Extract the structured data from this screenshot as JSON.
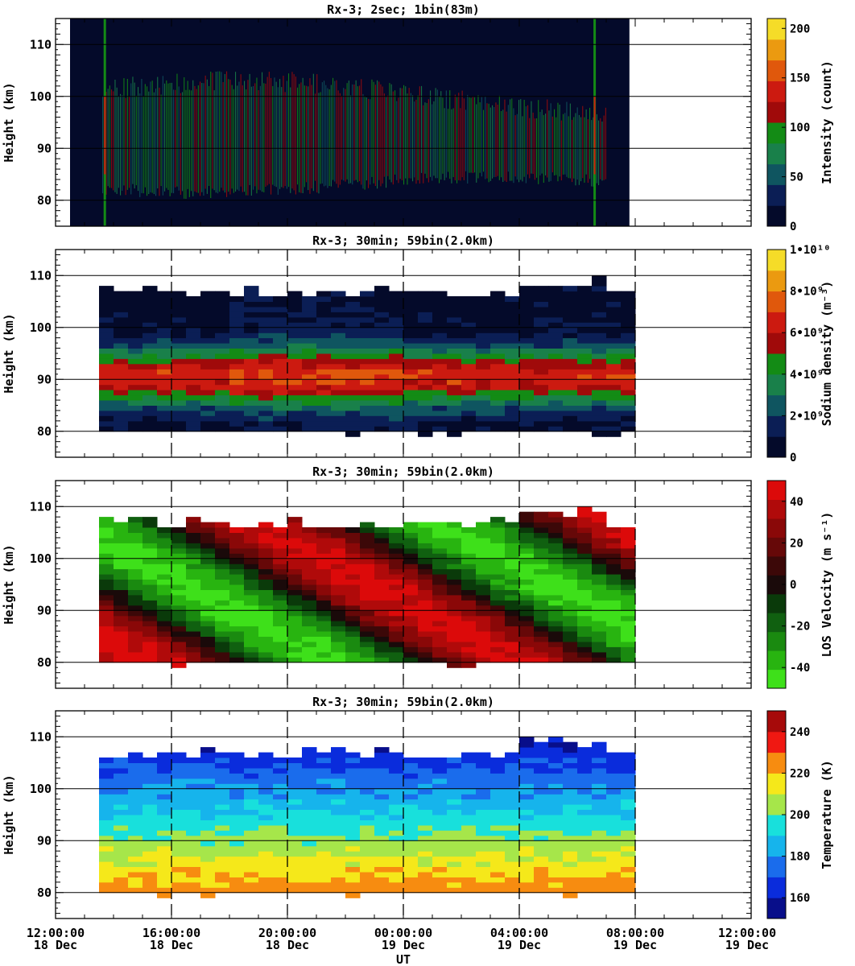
{
  "figure": {
    "xlabel": "UT",
    "x_ticks": [
      {
        "time": "12:00:00",
        "date": "18 Dec"
      },
      {
        "time": "16:00:00",
        "date": "18 Dec"
      },
      {
        "time": "20:00:00",
        "date": "18 Dec"
      },
      {
        "time": "00:00:00",
        "date": "19 Dec"
      },
      {
        "time": "04:00:00",
        "date": "19 Dec"
      },
      {
        "time": "08:00:00",
        "date": "19 Dec"
      },
      {
        "time": "12:00:00",
        "date": "19 Dec"
      }
    ]
  },
  "chart_data": [
    {
      "type": "heatmap",
      "title": "Rx-3;  2sec; 1bin(83m)",
      "ylabel": "Height (km)",
      "colorbar_label": "Intensity (count)",
      "colorbar_ticks": [
        "0",
        "50",
        "100",
        "150",
        "200"
      ],
      "colorbar_range": [
        0,
        210
      ],
      "x_range_hours": [
        0,
        24
      ],
      "data_x_range_hours": [
        0.5,
        19.8
      ],
      "ylim": [
        75,
        115
      ],
      "y_ticks": [
        80,
        90,
        100,
        110
      ],
      "layer_km": [
        83,
        100
      ],
      "colors": [
        "#040a2a",
        "#0b1e55",
        "#0f5560",
        "#19804a",
        "#138b15",
        "#a00a0a",
        "#cc1a10",
        "#e0580c",
        "#eb9a10",
        "#f5dc28"
      ]
    },
    {
      "type": "heatmap",
      "title": "Rx-3; 30min; 59bin(2.0km)",
      "ylabel": "Height (km)",
      "colorbar_label": "Sodium density (m⁻³)",
      "colorbar_ticks": [
        "0",
        "2•10⁹",
        "4•10⁹",
        "6•10⁹",
        "8•10⁹",
        "1•10¹⁰"
      ],
      "colorbar_range": [
        0,
        10000000000
      ],
      "data_x_range_hours": [
        1.5,
        20
      ],
      "ylim": [
        75,
        115
      ],
      "y_ticks": [
        80,
        90,
        100,
        110
      ],
      "peak_density": 7000000000,
      "colors": [
        "#040a2a",
        "#0b1e55",
        "#0f5560",
        "#19804a",
        "#138b15",
        "#a00a0a",
        "#cc1a10",
        "#e0580c",
        "#eb9a10",
        "#f5dc28"
      ]
    },
    {
      "type": "heatmap",
      "title": "Rx-3; 30min; 59bin(2.0km)",
      "ylabel": "Height (km)",
      "colorbar_label": "LOS Velocity (m s⁻¹)",
      "colorbar_ticks": [
        "-40",
        "-20",
        "0",
        "20",
        "40"
      ],
      "colorbar_range": [
        -50,
        50
      ],
      "data_x_range_hours": [
        1.5,
        20
      ],
      "ylim": [
        75,
        115
      ],
      "y_ticks": [
        80,
        90,
        100,
        110
      ],
      "colors": [
        "#3ee01a",
        "#28b410",
        "#1a8a10",
        "#106010",
        "#0a3a0a",
        "#1a0a0a",
        "#3c0808",
        "#660808",
        "#8a0808",
        "#b00a0a",
        "#dc0a0a"
      ]
    },
    {
      "type": "heatmap",
      "title": "Rx-3; 30min; 59bin(2.0km)",
      "ylabel": "Height (km)",
      "colorbar_label": "Temperature (K)",
      "colorbar_ticks": [
        "160",
        "180",
        "200",
        "220",
        "240"
      ],
      "colorbar_range": [
        150,
        250
      ],
      "data_x_range_hours": [
        1.5,
        20
      ],
      "ylim": [
        75,
        115
      ],
      "y_ticks": [
        80,
        90,
        100,
        110
      ],
      "colors": [
        "#080e8a",
        "#0a2cdc",
        "#1a6cec",
        "#16b4ec",
        "#18e0dc",
        "#a6e64a",
        "#f5e81a",
        "#f78c10",
        "#f01812",
        "#a60a0a"
      ]
    }
  ]
}
